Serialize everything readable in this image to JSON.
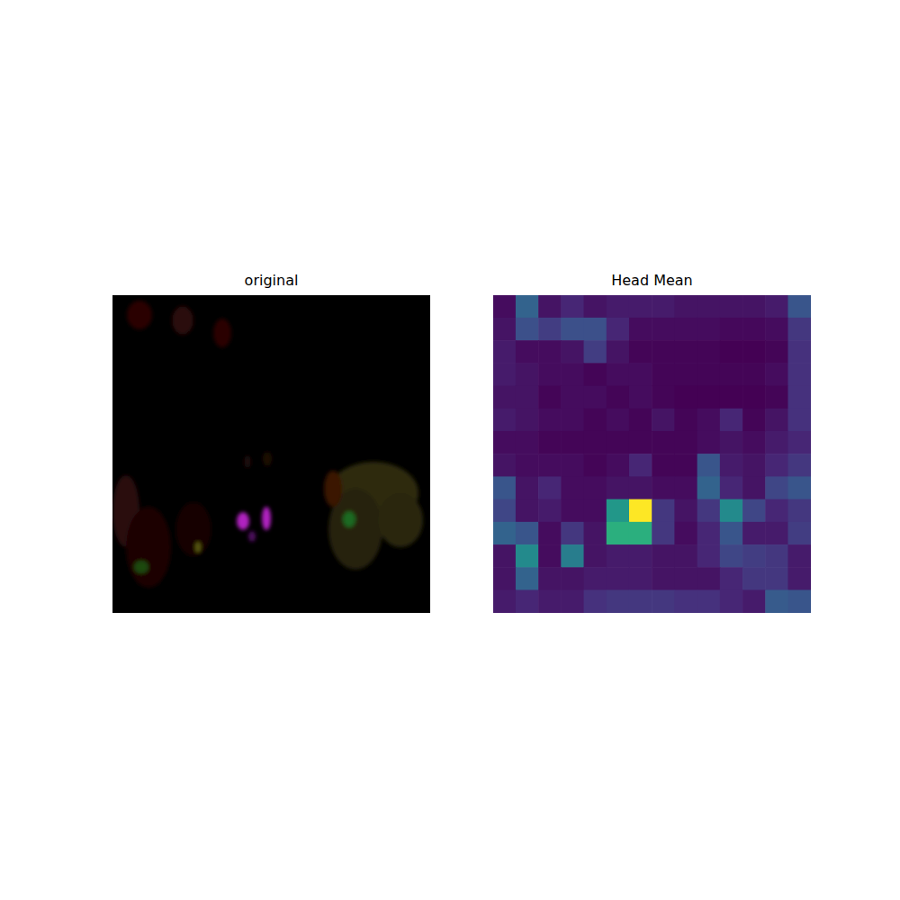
{
  "chart_data": [
    {
      "type": "image",
      "title": "original"
    },
    {
      "type": "heatmap",
      "title": "Head Mean",
      "tick_labels": false,
      "cells": [
        [
          0.08,
          0.35,
          0.1,
          0.15,
          0.1,
          0.12,
          0.12,
          0.12,
          0.1,
          0.1,
          0.1,
          0.1,
          0.12,
          0.3
        ],
        [
          0.1,
          0.28,
          0.22,
          0.28,
          0.28,
          0.15,
          0.08,
          0.08,
          0.08,
          0.08,
          0.07,
          0.07,
          0.08,
          0.2
        ],
        [
          0.12,
          0.08,
          0.08,
          0.1,
          0.22,
          0.1,
          0.06,
          0.06,
          0.06,
          0.06,
          0.05,
          0.05,
          0.06,
          0.18
        ],
        [
          0.12,
          0.1,
          0.08,
          0.08,
          0.06,
          0.08,
          0.08,
          0.06,
          0.06,
          0.06,
          0.06,
          0.06,
          0.08,
          0.18
        ],
        [
          0.1,
          0.1,
          0.06,
          0.08,
          0.08,
          0.06,
          0.08,
          0.06,
          0.05,
          0.05,
          0.05,
          0.05,
          0.06,
          0.18
        ],
        [
          0.12,
          0.1,
          0.08,
          0.08,
          0.06,
          0.08,
          0.06,
          0.1,
          0.06,
          0.08,
          0.15,
          0.06,
          0.1,
          0.18
        ],
        [
          0.08,
          0.08,
          0.06,
          0.06,
          0.06,
          0.06,
          0.06,
          0.06,
          0.06,
          0.08,
          0.1,
          0.08,
          0.12,
          0.15
        ],
        [
          0.1,
          0.08,
          0.08,
          0.08,
          0.06,
          0.08,
          0.15,
          0.06,
          0.06,
          0.3,
          0.12,
          0.1,
          0.15,
          0.2
        ],
        [
          0.3,
          0.1,
          0.15,
          0.08,
          0.08,
          0.1,
          0.1,
          0.08,
          0.08,
          0.35,
          0.15,
          0.1,
          0.25,
          0.3
        ],
        [
          0.25,
          0.1,
          0.12,
          0.08,
          0.08,
          0.55,
          1.0,
          0.2,
          0.1,
          0.2,
          0.5,
          0.25,
          0.15,
          0.2
        ],
        [
          0.35,
          0.3,
          0.08,
          0.2,
          0.1,
          0.65,
          0.65,
          0.2,
          0.08,
          0.15,
          0.3,
          0.12,
          0.12,
          0.22
        ],
        [
          0.1,
          0.5,
          0.08,
          0.45,
          0.1,
          0.12,
          0.12,
          0.1,
          0.1,
          0.15,
          0.25,
          0.22,
          0.2,
          0.12
        ],
        [
          0.1,
          0.35,
          0.1,
          0.1,
          0.12,
          0.12,
          0.12,
          0.1,
          0.1,
          0.1,
          0.15,
          0.2,
          0.2,
          0.12
        ],
        [
          0.12,
          0.15,
          0.12,
          0.12,
          0.18,
          0.2,
          0.2,
          0.2,
          0.18,
          0.18,
          0.15,
          0.12,
          0.32,
          0.3
        ]
      ]
    }
  ]
}
